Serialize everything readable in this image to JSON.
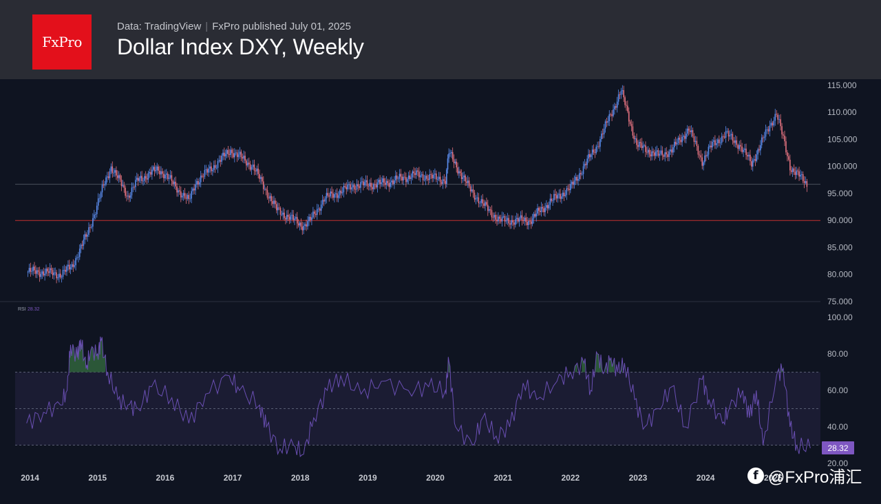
{
  "header": {
    "logo_text": "FxPro",
    "source": "Data: TradingView",
    "publisher": "FxPro published July 01, 2025",
    "title": "Dollar Index DXY, Weekly"
  },
  "watermark": {
    "icon": "facebook-icon",
    "text": "@FxPro浦汇"
  },
  "colors": {
    "background": "#0f1421",
    "header": "#2a2c34",
    "up": "#5b8def",
    "down": "#e57380",
    "support_line": "#c43030",
    "rsi_line": "#6a4fb3",
    "rsi_band": "#1b1c33",
    "overbought_fill": "#2f5e3b",
    "rsi_badge": "#7e57c2"
  },
  "chart_data": [
    {
      "type": "candlestick",
      "title": "Dollar Index DXY, Weekly",
      "x_ticks": [
        "2014",
        "2015",
        "2016",
        "2017",
        "2018",
        "2019",
        "2020",
        "2021",
        "2022",
        "2023",
        "2024",
        "2025"
      ],
      "y_ticks": [
        "75.000",
        "80.000",
        "85.000",
        "90.000",
        "95.000",
        "100.000",
        "105.000",
        "110.000",
        "115.000"
      ],
      "ylim": [
        75,
        115.5
      ],
      "horizontal_lines": [
        {
          "value": 90,
          "style": "solid",
          "color": "support_line"
        },
        {
          "value": 96.7,
          "style": "solid",
          "color": "grey"
        }
      ],
      "series": [
        {
          "x": [
            2013.95,
            2014.2,
            2014.45,
            2014.62,
            2014.85,
            2015.05,
            2015.2,
            2015.45,
            2015.6,
            2015.9,
            2016.0,
            2016.35,
            2016.45,
            2016.8,
            2016.97,
            2017.3,
            2017.65,
            2018.05,
            2018.15,
            2018.35,
            2018.8,
            2019.2,
            2019.7,
            2020.15,
            2020.2,
            2020.5,
            2020.7,
            2020.95,
            2021.4,
            2021.7,
            2022.0,
            2022.4,
            2022.75,
            2022.98,
            2023.3,
            2023.5,
            2023.75,
            2023.95,
            2024.1,
            2024.3,
            2024.5,
            2024.68,
            2024.85,
            2025.05,
            2025.25,
            2025.5
          ],
          "values": [
            80.5,
            80.5,
            80.0,
            81.5,
            87.5,
            95.0,
            100.0,
            94.5,
            97.5,
            99.5,
            98.5,
            93.5,
            97.0,
            101.0,
            103.0,
            100.0,
            92.0,
            89.0,
            90.0,
            94.0,
            96.5,
            96.8,
            98.5,
            97.5,
            102.5,
            96.0,
            93.0,
            90.0,
            90.0,
            93.5,
            96.0,
            104.0,
            114.0,
            104.0,
            102.0,
            103.0,
            107.0,
            101.0,
            104.0,
            106.0,
            104.0,
            100.5,
            105.0,
            110.0,
            100.0,
            96.7
          ]
        }
      ]
    },
    {
      "type": "line",
      "title": "RSI 28.32",
      "indicator_label": "RSI",
      "last_value": "28.32",
      "x_ticks": [
        "2014",
        "2015",
        "2016",
        "2017",
        "2018",
        "2019",
        "2020",
        "2021",
        "2022",
        "2023",
        "2024",
        "2025"
      ],
      "y_ticks": [
        "20.00",
        "40.00",
        "60.00",
        "80.00",
        "100.00"
      ],
      "ylim": [
        20,
        100
      ],
      "levels": [
        30,
        50,
        70
      ],
      "series": [
        {
          "x": [
            2013.95,
            2014.2,
            2014.45,
            2014.55,
            2014.6,
            2014.7,
            2014.75,
            2014.83,
            2014.9,
            2015.0,
            2015.05,
            2015.15,
            2015.3,
            2015.45,
            2015.6,
            2015.8,
            2016.1,
            2016.35,
            2016.6,
            2016.95,
            2017.1,
            2017.4,
            2017.5,
            2017.7,
            2017.9,
            2018.05,
            2018.2,
            2018.4,
            2018.6,
            2018.9,
            2019.2,
            2019.6,
            2019.9,
            2020.15,
            2020.2,
            2020.3,
            2020.55,
            2020.7,
            2020.9,
            2021.1,
            2021.3,
            2021.5,
            2021.8,
            2022.0,
            2022.2,
            2022.3,
            2022.4,
            2022.5,
            2022.6,
            2022.7,
            2022.8,
            2022.95,
            2023.1,
            2023.3,
            2023.5,
            2023.7,
            2023.95,
            2024.05,
            2024.25,
            2024.35,
            2024.55,
            2024.65,
            2024.75,
            2024.85,
            2025.05,
            2025.15,
            2025.25,
            2025.35,
            2025.55
          ],
          "values": [
            42,
            48,
            52,
            60,
            85,
            78,
            88,
            72,
            82,
            80,
            87,
            70,
            55,
            52,
            50,
            62,
            56,
            42,
            58,
            68,
            60,
            52,
            40,
            28,
            30,
            25,
            45,
            60,
            68,
            58,
            65,
            60,
            62,
            60,
            76,
            40,
            30,
            45,
            35,
            40,
            64,
            55,
            65,
            70,
            75,
            60,
            80,
            70,
            78,
            70,
            75,
            55,
            40,
            50,
            62,
            40,
            66,
            55,
            42,
            50,
            60,
            45,
            60,
            30,
            68,
            72,
            40,
            30,
            28.32
          ]
        }
      ]
    }
  ]
}
